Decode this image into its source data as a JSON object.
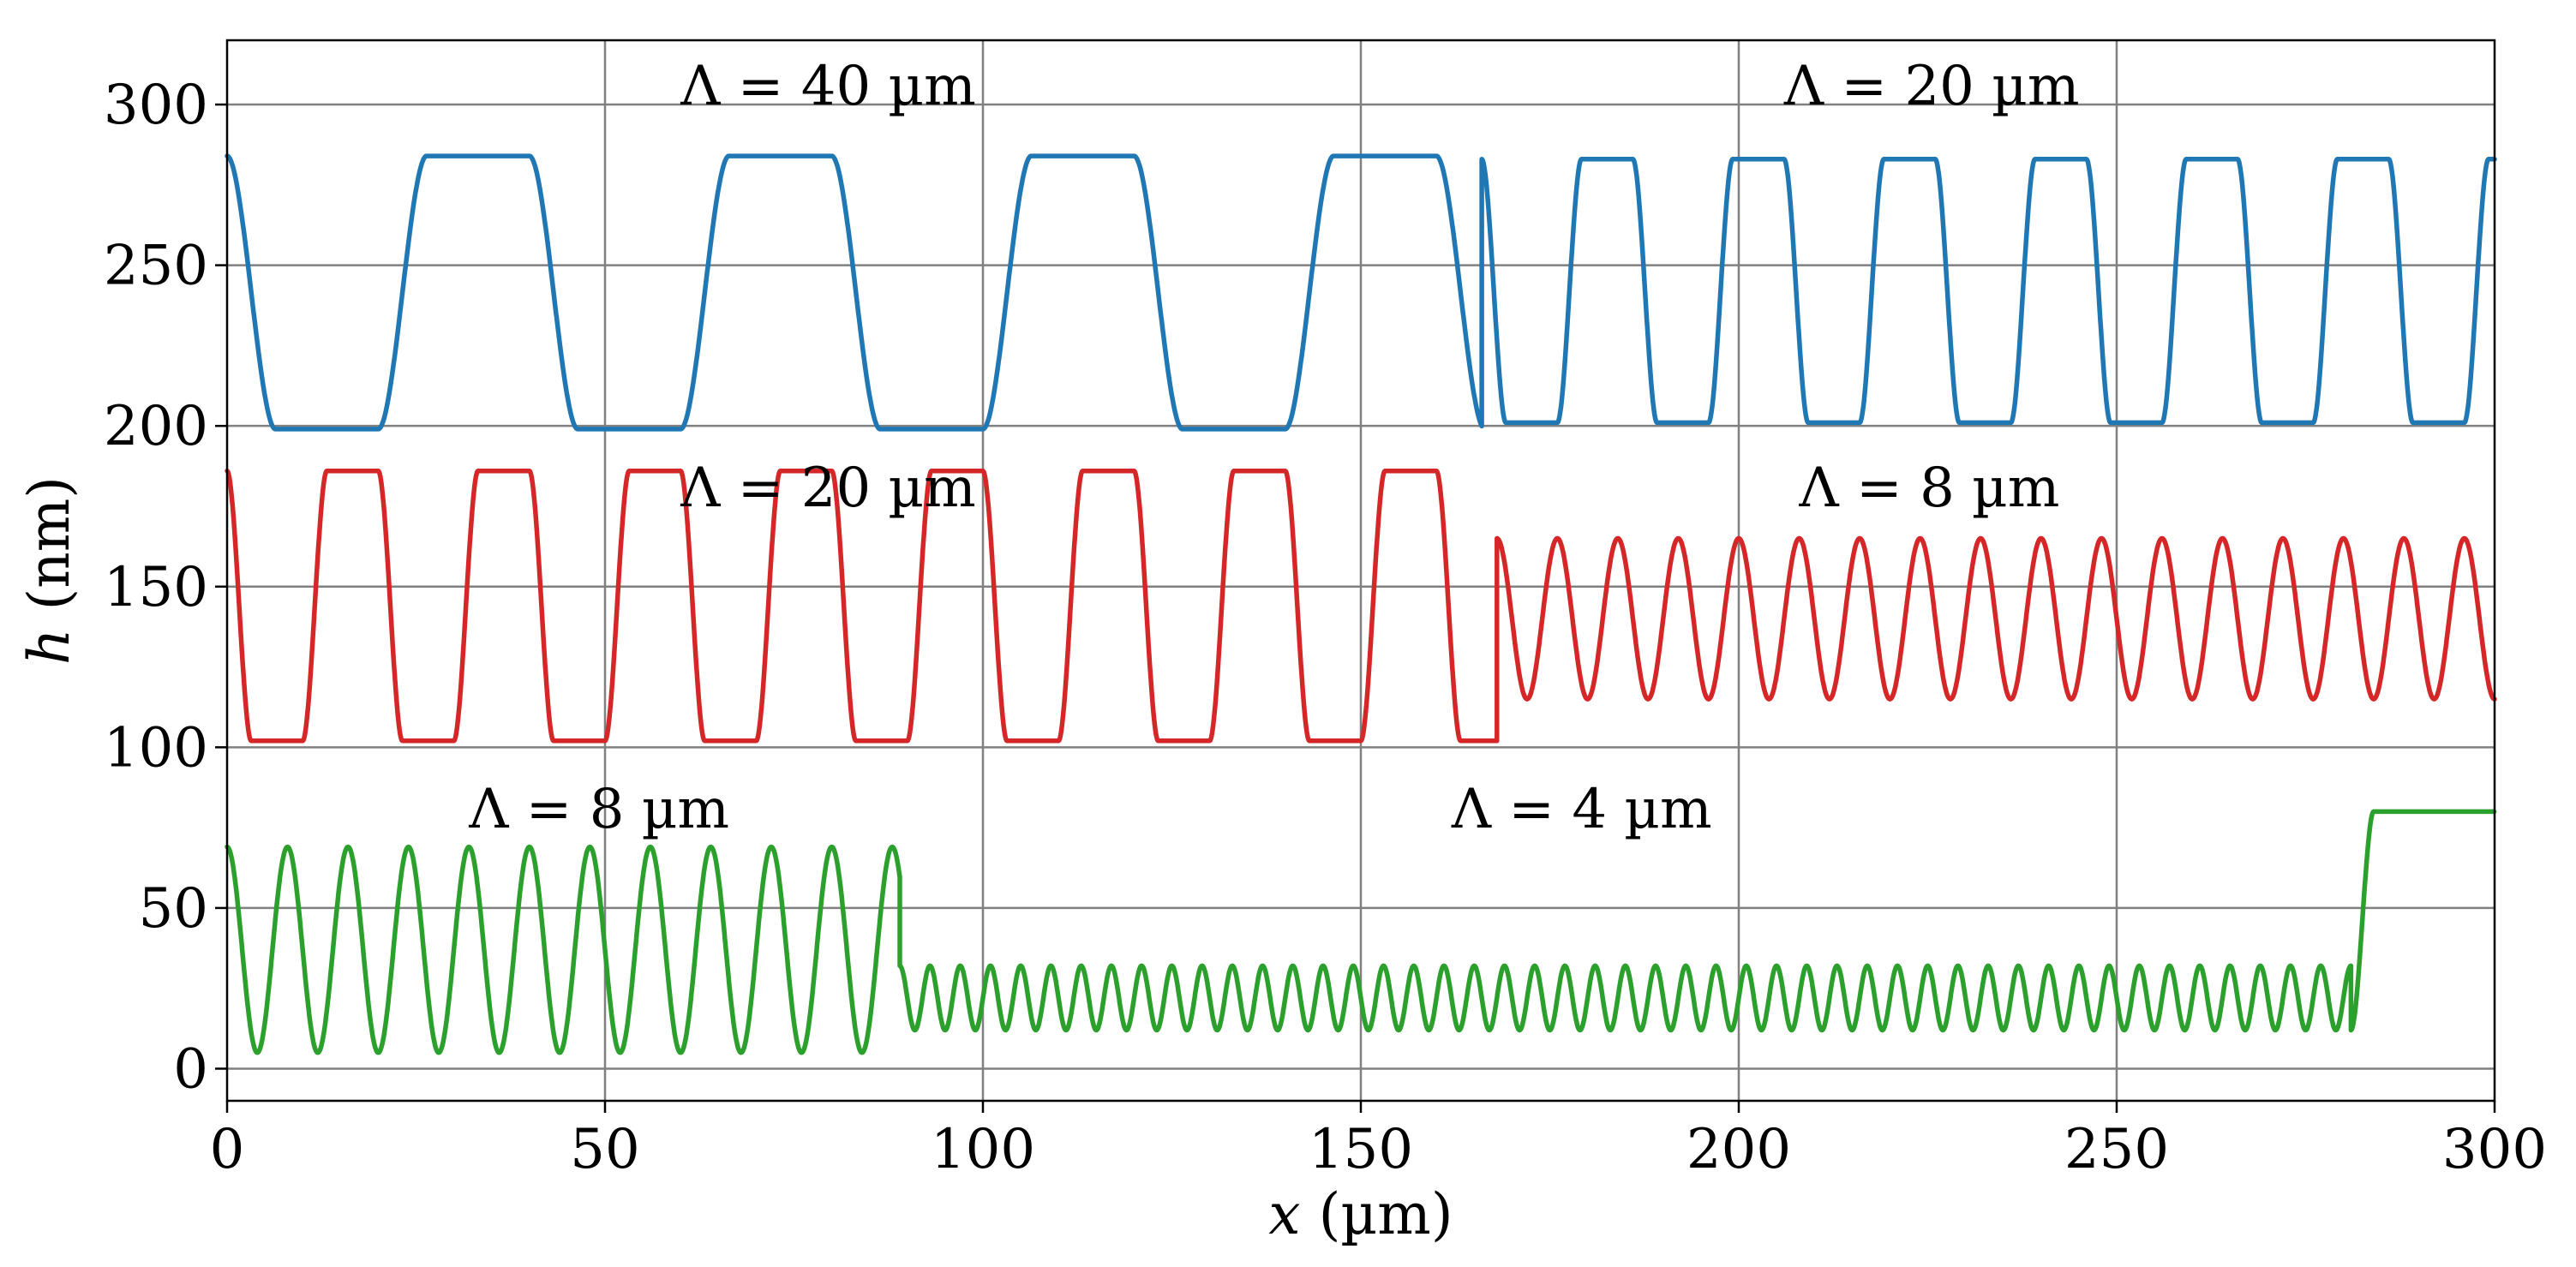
{
  "chart_data": {
    "type": "line",
    "xlabel": "x (µm)",
    "xlabel_var": "x",
    "xlabel_unit": " (µm)",
    "ylabel": "h (nm)",
    "ylabel_var": "h",
    "ylabel_unit": " (nm)",
    "xlim": [
      0,
      300
    ],
    "ylim": [
      -10,
      320
    ],
    "xticks": [
      0,
      50,
      100,
      150,
      200,
      250,
      300
    ],
    "yticks": [
      0,
      50,
      100,
      150,
      200,
      250,
      300
    ],
    "grid": true,
    "series": [
      {
        "color": "#1f77b4",
        "segments": [
          {
            "x_start": 0,
            "x_end": 166,
            "period": 40,
            "low": 199,
            "high": 284,
            "phase": 0,
            "shape": "square"
          },
          {
            "x_start": 166,
            "x_end": 300,
            "period": 20,
            "low": 201,
            "high": 283,
            "phase": 0,
            "shape": "square"
          }
        ]
      },
      {
        "color": "#d62728",
        "segments": [
          {
            "x_start": 0,
            "x_end": 168,
            "period": 20,
            "low": 102,
            "high": 186,
            "phase": 0,
            "shape": "square"
          },
          {
            "x_start": 168,
            "x_end": 300,
            "period": 8,
            "low": 115,
            "high": 165,
            "phase": 0,
            "shape": "sine"
          }
        ]
      },
      {
        "color": "#2ca02c",
        "segments": [
          {
            "x_start": 0,
            "x_end": 89,
            "period": 8,
            "low": 5,
            "high": 69,
            "phase": 0,
            "shape": "sine"
          },
          {
            "x_start": 89,
            "x_end": 281,
            "period": 4,
            "low": 12,
            "high": 32,
            "phase": 0,
            "shape": "sine"
          },
          {
            "x_start": 281,
            "x_end": 300,
            "period": 0,
            "low": 12,
            "high": 80,
            "phase": 0,
            "shape": "step"
          }
        ]
      }
    ],
    "annotations": [
      {
        "text": "Λ = 40 µm",
        "x": 60,
        "y": 300
      },
      {
        "text": "Λ = 20 µm",
        "x": 206,
        "y": 300
      },
      {
        "text": "Λ = 20 µm",
        "x": 60,
        "y": 175
      },
      {
        "text": "Λ = 8 µm",
        "x": 208,
        "y": 175
      },
      {
        "text": "Λ = 8 µm",
        "x": 32,
        "y": 75
      },
      {
        "text": "Λ = 4 µm",
        "x": 162,
        "y": 75
      }
    ]
  }
}
